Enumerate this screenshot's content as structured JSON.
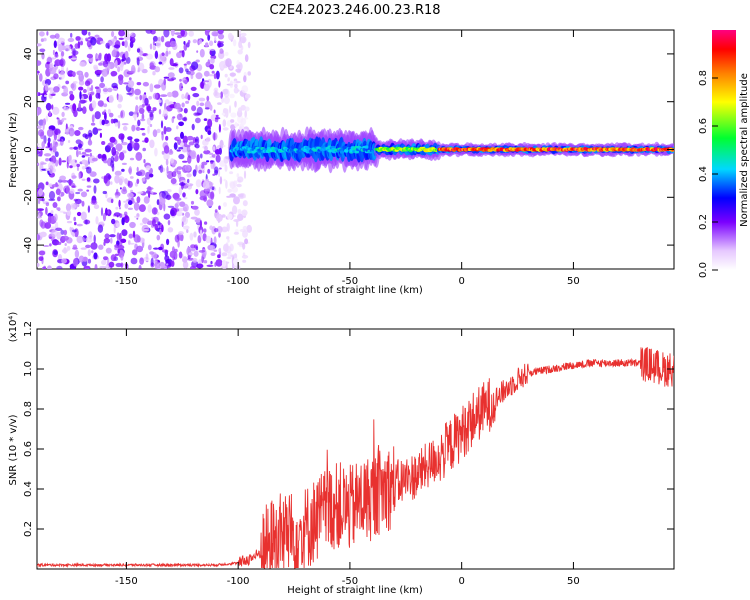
{
  "title": "C2E4.2023.246.00.23.R18",
  "colors": {
    "snr_line": "#e8312f",
    "spectro_low": "#7a00ff",
    "spectro_mid": "#00ff40",
    "spectro_high": "#ff0000"
  },
  "chart_data": [
    {
      "type": "heatmap",
      "xlabel": "Height of straight line (km)",
      "ylabel": "Frequency (Hz)",
      "xlim": [
        -190,
        95
      ],
      "ylim": [
        -50,
        50
      ],
      "xticks": [
        -150,
        -100,
        -50,
        0,
        50
      ],
      "xtick_labels": [
        "-150",
        "-100",
        "-50",
        "0",
        "50"
      ],
      "yticks": [
        -40,
        -20,
        0,
        20,
        40
      ],
      "ytick_labels": [
        "-40",
        "-20",
        "0",
        "20",
        "40"
      ],
      "noise_region_x": [
        -190,
        -95
      ],
      "band_segments": [
        {
          "x0": -103,
          "x1": -38,
          "half_width_hz": 6,
          "level": 0.45
        },
        {
          "x0": -38,
          "x1": -10,
          "half_width_hz": 3,
          "level": 0.7
        },
        {
          "x0": -10,
          "x1": 95,
          "half_width_hz": 2,
          "level": 0.95
        }
      ],
      "colorbar": {
        "label": "Normalized spectral amplitude",
        "range": [
          0,
          1
        ],
        "ticks": [
          0.0,
          0.2,
          0.4,
          0.6,
          0.8
        ],
        "tick_labels": [
          "0.0",
          "0.2",
          "0.4",
          "0.6",
          "0.8"
        ]
      }
    },
    {
      "type": "line",
      "xlabel": "Height of straight line (km)",
      "ylabel": "SNR (10 * v/v)",
      "scale_label": "(x10⁴)",
      "xlim": [
        -190,
        95
      ],
      "ylim": [
        0,
        1.2
      ],
      "xticks": [
        -150,
        -100,
        -50,
        0,
        50
      ],
      "xtick_labels": [
        "-150",
        "-100",
        "-50",
        "0",
        "50"
      ],
      "yticks": [
        0.2,
        0.4,
        0.6,
        0.8,
        1.0,
        1.2
      ],
      "ytick_labels": [
        "0.2",
        "0.4",
        "0.6",
        "0.8",
        "1.0",
        "1.2"
      ],
      "series": [
        {
          "name": "SNR",
          "x": [
            -190,
            -170,
            -150,
            -130,
            -110,
            -100,
            -95,
            -90,
            -85,
            -80,
            -75,
            -70,
            -65,
            -60,
            -55,
            -50,
            -45,
            -40,
            -35,
            -30,
            -25,
            -20,
            -15,
            -10,
            -5,
            0,
            5,
            10,
            15,
            20,
            25,
            30,
            40,
            50,
            60,
            70,
            80,
            85,
            90,
            95
          ],
          "values": [
            0.02,
            0.02,
            0.02,
            0.02,
            0.02,
            0.03,
            0.05,
            0.08,
            0.14,
            0.18,
            0.17,
            0.2,
            0.25,
            0.3,
            0.32,
            0.3,
            0.34,
            0.36,
            0.4,
            0.42,
            0.45,
            0.47,
            0.52,
            0.56,
            0.62,
            0.68,
            0.75,
            0.8,
            0.85,
            0.9,
            0.95,
            0.98,
            1.0,
            1.02,
            1.03,
            1.03,
            1.03,
            1.02,
            1.0,
            1.0
          ]
        }
      ]
    }
  ]
}
